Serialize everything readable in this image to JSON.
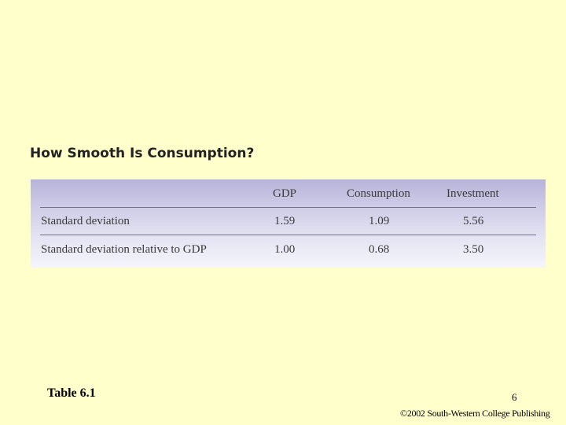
{
  "table": {
    "title": "How Smooth Is Consumption?",
    "columns": [
      "",
      "GDP",
      "Consumption",
      "Investment"
    ],
    "rows": [
      {
        "label": "Standard deviation",
        "gdp": "1.59",
        "consumption": "1.09",
        "investment": "5.56"
      },
      {
        "label": "Standard deviation relative to GDP",
        "gdp": "1.00",
        "consumption": "0.68",
        "investment": "3.50"
      }
    ]
  },
  "footer": {
    "table_label": "Table 6.1",
    "page_number": "6",
    "copyright": "©2002 South-Western College Publishing"
  },
  "colors": {
    "background": "#ffffcc",
    "table_header_shade": "#b6b3d9"
  }
}
